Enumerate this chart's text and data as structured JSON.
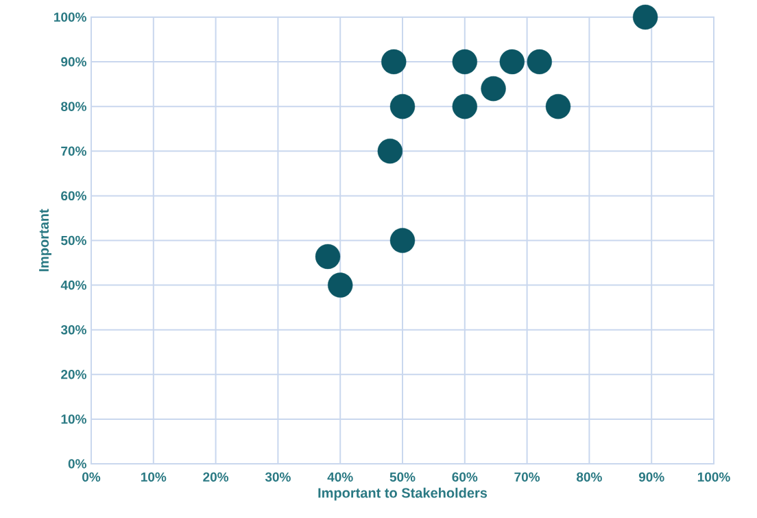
{
  "chart_data": {
    "type": "scatter",
    "xlabel": "Important to Stakeholders",
    "ylabel": "Important",
    "x": [
      89,
      48.6,
      60,
      67.6,
      72,
      64.6,
      50,
      60,
      75,
      48,
      50,
      38,
      40
    ],
    "values": [
      100,
      90,
      90,
      90,
      90,
      84,
      80,
      80,
      80,
      70,
      50,
      46.4,
      40
    ],
    "color": "#0b5563",
    "marker": "circle",
    "xlim": [
      0,
      100
    ],
    "ylim": [
      0,
      100
    ],
    "xticks": [
      {
        "value": 0,
        "label": "0%"
      },
      {
        "value": 10,
        "label": "10%"
      },
      {
        "value": 20,
        "label": "20%"
      },
      {
        "value": 30,
        "label": "30%"
      },
      {
        "value": 40,
        "label": "40%"
      },
      {
        "value": 50,
        "label": "50%"
      },
      {
        "value": 60,
        "label": "60%"
      },
      {
        "value": 70,
        "label": "70%"
      },
      {
        "value": 80,
        "label": "80%"
      },
      {
        "value": 90,
        "label": "90%"
      },
      {
        "value": 100,
        "label": "100%"
      }
    ],
    "yticks": [
      {
        "value": 0,
        "label": "0%"
      },
      {
        "value": 10,
        "label": "10%"
      },
      {
        "value": 20,
        "label": "20%"
      },
      {
        "value": 30,
        "label": "30%"
      },
      {
        "value": 40,
        "label": "40%"
      },
      {
        "value": 50,
        "label": "50%"
      },
      {
        "value": 60,
        "label": "60%"
      },
      {
        "value": 70,
        "label": "70%"
      },
      {
        "value": 80,
        "label": "80%"
      },
      {
        "value": 90,
        "label": "90%"
      },
      {
        "value": 100,
        "label": "100%"
      }
    ],
    "grid": true
  }
}
